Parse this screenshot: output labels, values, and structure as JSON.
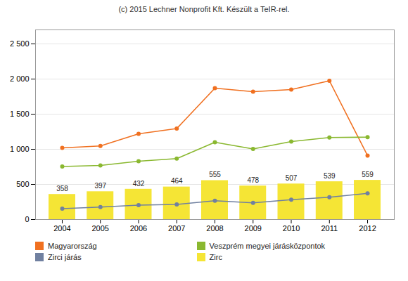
{
  "chart_data": {
    "type": "bar",
    "title": "(c) 2015 Lechner Nonprofit Kft. Készült a TeIR-rel.",
    "x": [
      2004,
      2005,
      2006,
      2007,
      2008,
      2009,
      2010,
      2011,
      2012
    ],
    "series": [
      {
        "name": "Magyarország",
        "type": "line",
        "color": "#f07020",
        "marker": "circle",
        "values": [
          1020,
          1048,
          1220,
          1295,
          1870,
          1820,
          1850,
          1975,
          910
        ]
      },
      {
        "name": "Zirci járás",
        "type": "line",
        "color": "#7080a0",
        "marker": "circle",
        "values": [
          155,
          178,
          205,
          215,
          268,
          238,
          282,
          318,
          372
        ]
      },
      {
        "name": "Veszprém megyei járásközpontok",
        "type": "line",
        "color": "#8ab830",
        "marker": "circle",
        "values": [
          755,
          770,
          830,
          868,
          1100,
          1005,
          1110,
          1168,
          1172
        ]
      },
      {
        "name": "Zirc",
        "type": "bar",
        "color": "#f5e535",
        "data_labels": true,
        "values": [
          358,
          397,
          432,
          464,
          555,
          478,
          507,
          539,
          559
        ]
      }
    ],
    "xlim": [
      2003.3,
      2012.7
    ],
    "xticks": [
      2004,
      2005,
      2006,
      2007,
      2008,
      2009,
      2010,
      2011,
      2012
    ],
    "ylim": [
      0,
      2700
    ],
    "yticks": [
      0,
      500,
      {
        "value": 1000,
        "label": "1 000"
      },
      {
        "value": 1500,
        "label": "1 500"
      },
      {
        "value": 2000,
        "label": "2 000"
      },
      {
        "value": 2500,
        "label": "2 500"
      }
    ],
    "grid": true,
    "legend": "bottom"
  }
}
